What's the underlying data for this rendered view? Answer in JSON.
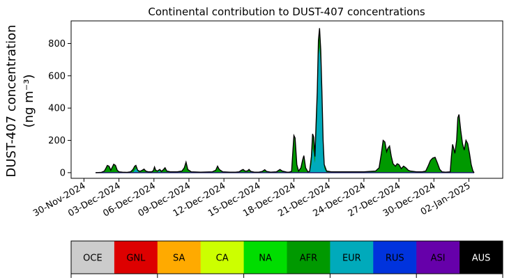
{
  "chart_data": {
    "type": "area",
    "title": "Continental contribution to DUST-407 concentrations",
    "ylabel_line1": "DUST-407 concentration",
    "ylabel_line2": "(ng m⁻³)",
    "ylim": [
      -35,
      940
    ],
    "yticks": [
      0,
      200,
      400,
      600,
      800
    ],
    "xlim_days": [
      -2.1,
      34.9
    ],
    "x_start": "2024-12-01",
    "xticks": [
      {
        "day": -1,
        "label": "30-Nov-2024"
      },
      {
        "day": 2,
        "label": "03-Dec-2024"
      },
      {
        "day": 5,
        "label": "06-Dec-2024"
      },
      {
        "day": 8,
        "label": "09-Dec-2024"
      },
      {
        "day": 11,
        "label": "12-Dec-2024"
      },
      {
        "day": 14,
        "label": "15-Dec-2024"
      },
      {
        "day": 17,
        "label": "18-Dec-2024"
      },
      {
        "day": 20,
        "label": "21-Dec-2024"
      },
      {
        "day": 23,
        "label": "24-Dec-2024"
      },
      {
        "day": 26,
        "label": "27-Dec-2024"
      },
      {
        "day": 29,
        "label": "30-Dec-2024"
      },
      {
        "day": 32,
        "label": "02-Jan-2025"
      }
    ],
    "grid": false,
    "total": [
      [
        0,
        0
      ],
      [
        0.5,
        2
      ],
      [
        0.75,
        10
      ],
      [
        0.9,
        30
      ],
      [
        1.0,
        45
      ],
      [
        1.15,
        40
      ],
      [
        1.3,
        15
      ],
      [
        1.4,
        30
      ],
      [
        1.55,
        52
      ],
      [
        1.7,
        45
      ],
      [
        1.85,
        15
      ],
      [
        2.0,
        5
      ],
      [
        2.3,
        3
      ],
      [
        2.7,
        2
      ],
      [
        3.0,
        5
      ],
      [
        3.2,
        20
      ],
      [
        3.35,
        40
      ],
      [
        3.45,
        45
      ],
      [
        3.6,
        15
      ],
      [
        3.8,
        8
      ],
      [
        4.0,
        15
      ],
      [
        4.15,
        22
      ],
      [
        4.3,
        10
      ],
      [
        4.5,
        5
      ],
      [
        4.8,
        5
      ],
      [
        4.95,
        12
      ],
      [
        5.05,
        35
      ],
      [
        5.15,
        15
      ],
      [
        5.3,
        10
      ],
      [
        5.5,
        20
      ],
      [
        5.65,
        8
      ],
      [
        5.8,
        18
      ],
      [
        5.95,
        30
      ],
      [
        6.1,
        10
      ],
      [
        6.4,
        5
      ],
      [
        7.0,
        5
      ],
      [
        7.4,
        10
      ],
      [
        7.6,
        30
      ],
      [
        7.75,
        65
      ],
      [
        7.9,
        20
      ],
      [
        8.2,
        5
      ],
      [
        9.0,
        3
      ],
      [
        10.0,
        5
      ],
      [
        10.3,
        15
      ],
      [
        10.45,
        40
      ],
      [
        10.6,
        20
      ],
      [
        10.9,
        5
      ],
      [
        11.5,
        3
      ],
      [
        12.0,
        3
      ],
      [
        12.3,
        5
      ],
      [
        12.5,
        15
      ],
      [
        12.65,
        20
      ],
      [
        12.8,
        10
      ],
      [
        13.0,
        10
      ],
      [
        13.15,
        20
      ],
      [
        13.3,
        8
      ],
      [
        13.6,
        3
      ],
      [
        14.0,
        3
      ],
      [
        14.3,
        8
      ],
      [
        14.5,
        18
      ],
      [
        14.65,
        8
      ],
      [
        15.0,
        3
      ],
      [
        15.5,
        5
      ],
      [
        15.7,
        15
      ],
      [
        15.8,
        20
      ],
      [
        16.0,
        10
      ],
      [
        16.4,
        3
      ],
      [
        16.6,
        3
      ],
      [
        16.8,
        8
      ],
      [
        17.0,
        230
      ],
      [
        17.1,
        215
      ],
      [
        17.25,
        50
      ],
      [
        17.4,
        10
      ],
      [
        17.6,
        30
      ],
      [
        17.75,
        80
      ],
      [
        17.85,
        105
      ],
      [
        18.0,
        30
      ],
      [
        18.2,
        5
      ],
      [
        18.35,
        8
      ],
      [
        18.5,
        100
      ],
      [
        18.6,
        240
      ],
      [
        18.7,
        220
      ],
      [
        18.8,
        100
      ],
      [
        18.9,
        300
      ],
      [
        19.0,
        500
      ],
      [
        19.1,
        820
      ],
      [
        19.2,
        895
      ],
      [
        19.3,
        760
      ],
      [
        19.4,
        500
      ],
      [
        19.5,
        200
      ],
      [
        19.6,
        50
      ],
      [
        19.8,
        10
      ],
      [
        20.2,
        5
      ],
      [
        21.0,
        5
      ],
      [
        22.0,
        5
      ],
      [
        23.0,
        5
      ],
      [
        24.0,
        10
      ],
      [
        24.3,
        30
      ],
      [
        24.5,
        120
      ],
      [
        24.65,
        200
      ],
      [
        24.8,
        190
      ],
      [
        24.95,
        130
      ],
      [
        25.05,
        150
      ],
      [
        25.2,
        165
      ],
      [
        25.35,
        100
      ],
      [
        25.5,
        55
      ],
      [
        25.7,
        40
      ],
      [
        25.85,
        55
      ],
      [
        26.0,
        50
      ],
      [
        26.2,
        25
      ],
      [
        26.4,
        40
      ],
      [
        26.6,
        30
      ],
      [
        26.8,
        15
      ],
      [
        27.0,
        10
      ],
      [
        27.5,
        5
      ],
      [
        28.0,
        5
      ],
      [
        28.3,
        10
      ],
      [
        28.5,
        40
      ],
      [
        28.7,
        75
      ],
      [
        28.9,
        90
      ],
      [
        29.1,
        95
      ],
      [
        29.3,
        60
      ],
      [
        29.5,
        20
      ],
      [
        29.7,
        5
      ],
      [
        30.0,
        3
      ],
      [
        30.4,
        5
      ],
      [
        30.5,
        100
      ],
      [
        30.6,
        175
      ],
      [
        30.7,
        150
      ],
      [
        30.8,
        120
      ],
      [
        30.95,
        200
      ],
      [
        31.05,
        340
      ],
      [
        31.15,
        360
      ],
      [
        31.3,
        260
      ],
      [
        31.45,
        180
      ],
      [
        31.6,
        140
      ],
      [
        31.75,
        200
      ],
      [
        31.9,
        180
      ],
      [
        32.05,
        120
      ],
      [
        32.2,
        50
      ],
      [
        32.35,
        10
      ],
      [
        32.45,
        0
      ]
    ],
    "eur": [
      [
        18.3,
        0
      ],
      [
        18.5,
        50
      ],
      [
        18.6,
        150
      ],
      [
        18.7,
        120
      ],
      [
        18.8,
        60
      ],
      [
        18.9,
        200
      ],
      [
        19.0,
        400
      ],
      [
        19.1,
        720
      ],
      [
        19.2,
        780
      ],
      [
        19.3,
        680
      ],
      [
        19.4,
        420
      ],
      [
        19.5,
        150
      ],
      [
        19.6,
        30
      ],
      [
        19.8,
        0
      ],
      [
        3.2,
        0
      ],
      [
        3.4,
        20
      ],
      [
        3.5,
        25
      ],
      [
        3.7,
        0
      ],
      [
        5.3,
        0
      ],
      [
        5.45,
        12
      ],
      [
        5.6,
        0
      ]
    ]
  },
  "legend": {
    "items": [
      {
        "label": "OCE",
        "color": "#cccccc",
        "text_color": "#000000"
      },
      {
        "label": "GNL",
        "color": "#dd0000",
        "text_color": "#000000"
      },
      {
        "label": "SA",
        "color": "#ffaa00",
        "text_color": "#000000"
      },
      {
        "label": "CA",
        "color": "#ccff00",
        "text_color": "#000000"
      },
      {
        "label": "NA",
        "color": "#00dd00",
        "text_color": "#000000"
      },
      {
        "label": "AFR",
        "color": "#009900",
        "text_color": "#000000"
      },
      {
        "label": "EUR",
        "color": "#00aabb",
        "text_color": "#000000"
      },
      {
        "label": "RUS",
        "color": "#0033dd",
        "text_color": "#000000"
      },
      {
        "label": "ASI",
        "color": "#6600aa",
        "text_color": "#000000"
      },
      {
        "label": "AUS",
        "color": "#000000",
        "text_color": "#ffffff"
      }
    ]
  }
}
